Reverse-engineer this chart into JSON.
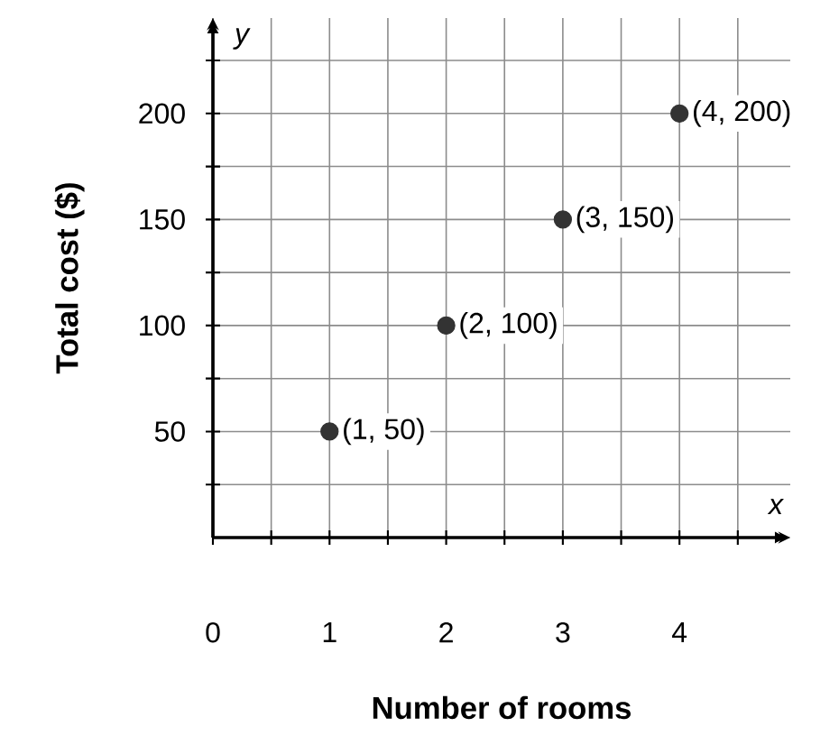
{
  "chart_data": {
    "type": "scatter",
    "xlabel": "Number of rooms",
    "ylabel": "Total cost ($)",
    "annotations": [
      "x",
      "y"
    ],
    "x": [
      1,
      2,
      3,
      4
    ],
    "values": [
      50,
      100,
      150,
      200
    ],
    "value_labels": [
      "(1, 50)",
      "(2, 100)",
      "(3, 150)",
      "(4, 200)"
    ],
    "color": "#333333",
    "grid": true,
    "xlim": [
      0,
      4.95
    ],
    "ylim": [
      0,
      245
    ],
    "xticks": [
      {
        "value": 0,
        "label": "0"
      },
      {
        "value": 0.5,
        "label": null
      },
      1,
      {
        "value": 1.5,
        "label": null
      },
      2,
      {
        "value": 2.5,
        "label": null
      },
      3,
      {
        "value": 3.5,
        "label": null
      },
      4,
      {
        "value": 4.5,
        "label": null
      }
    ],
    "yticks": [
      {
        "value": 25,
        "label": null
      },
      50,
      {
        "value": 75,
        "label": null
      },
      100,
      {
        "value": 125,
        "label": null
      },
      150,
      {
        "value": 175,
        "label": null
      },
      200,
      {
        "value": 225,
        "label": null
      }
    ]
  }
}
